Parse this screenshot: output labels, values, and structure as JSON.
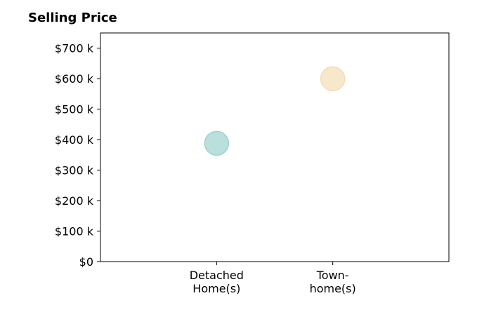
{
  "chart_data": {
    "type": "scatter",
    "title": "Selling Price",
    "xlabel": "",
    "ylabel": "",
    "categories": [
      [
        "Detached",
        "Home(s)"
      ],
      [
        "Town-",
        "home(s)"
      ]
    ],
    "values": [
      388000,
      600000
    ],
    "point_colors": [
      "#b9e0dc",
      "#f7e8cc"
    ],
    "point_stroke_colors": [
      "#9fd3cd",
      "#f2dcb4"
    ],
    "ylim": [
      0,
      750000
    ],
    "yticks": [
      0,
      100000,
      200000,
      300000,
      400000,
      500000,
      600000,
      700000
    ],
    "ytick_labels": [
      "$0",
      "$100 k",
      "$200 k",
      "$300 k",
      "$400 k",
      "$500 k",
      "$600 k",
      "$700 k"
    ],
    "x_range": [
      0,
      3
    ],
    "x_positions": [
      1,
      2
    ],
    "grid": false,
    "legend": "none"
  }
}
